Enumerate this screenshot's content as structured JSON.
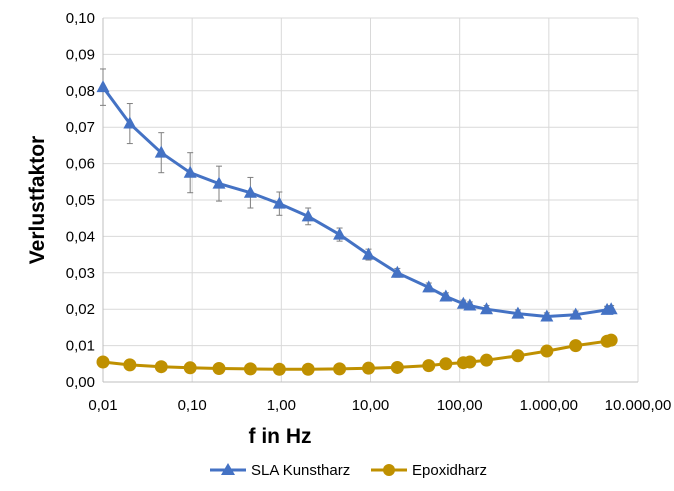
{
  "chart_data": {
    "type": "line",
    "title": "",
    "xlabel": "f in Hz",
    "ylabel": "Verlustfaktor",
    "xscale": "log",
    "xlim": [
      0.01,
      10000
    ],
    "ylim": [
      0,
      0.1
    ],
    "grid": true,
    "legend_position": "bottom",
    "x_tick_labels": [
      "0,01",
      "0,10",
      "1,00",
      "10,00",
      "100,00",
      "1.000,00",
      "10.000,00"
    ],
    "y_tick_labels": [
      "0,00",
      "0,01",
      "0,02",
      "0,03",
      "0,04",
      "0,05",
      "0,06",
      "0,07",
      "0,08",
      "0,09",
      "0,10"
    ],
    "x_ticks": [
      0.01,
      0.1,
      1,
      10,
      100,
      1000,
      10000
    ],
    "y_ticks": [
      0,
      0.01,
      0.02,
      0.03,
      0.04,
      0.05,
      0.06,
      0.07,
      0.08,
      0.09,
      0.1
    ],
    "series": [
      {
        "name": "SLA Kunstharz",
        "color": "#4472C4",
        "marker": "triangle",
        "x": [
          0.01,
          0.02,
          0.045,
          0.095,
          0.2,
          0.45,
          0.95,
          2,
          4.5,
          9.5,
          20,
          45,
          70,
          110,
          130,
          200,
          450,
          950,
          2000,
          4500,
          5000
        ],
        "y": [
          0.081,
          0.071,
          0.063,
          0.0575,
          0.0545,
          0.052,
          0.049,
          0.0455,
          0.0405,
          0.035,
          0.03,
          0.026,
          0.0235,
          0.0215,
          0.021,
          0.02,
          0.0188,
          0.018,
          0.0185,
          0.0198,
          0.02
        ],
        "error": [
          0.005,
          0.0055,
          0.0055,
          0.0055,
          0.0048,
          0.0042,
          0.0032,
          0.0023,
          0.0018,
          0.0015,
          0.0012,
          0.0012,
          0.001,
          0.001,
          0.001,
          0.001,
          0.001,
          0.001,
          0.001,
          0.001,
          0.001
        ]
      },
      {
        "name": "Epoxidharz",
        "color": "#BF9000",
        "marker": "circle",
        "x": [
          0.01,
          0.02,
          0.045,
          0.095,
          0.2,
          0.45,
          0.95,
          2,
          4.5,
          9.5,
          20,
          45,
          70,
          110,
          130,
          200,
          450,
          950,
          2000,
          4500,
          5000
        ],
        "y": [
          0.0055,
          0.0047,
          0.0042,
          0.0039,
          0.0037,
          0.0036,
          0.0035,
          0.0035,
          0.0036,
          0.0038,
          0.004,
          0.0045,
          0.005,
          0.0053,
          0.0055,
          0.006,
          0.0072,
          0.0085,
          0.01,
          0.0112,
          0.0115
        ]
      }
    ]
  }
}
